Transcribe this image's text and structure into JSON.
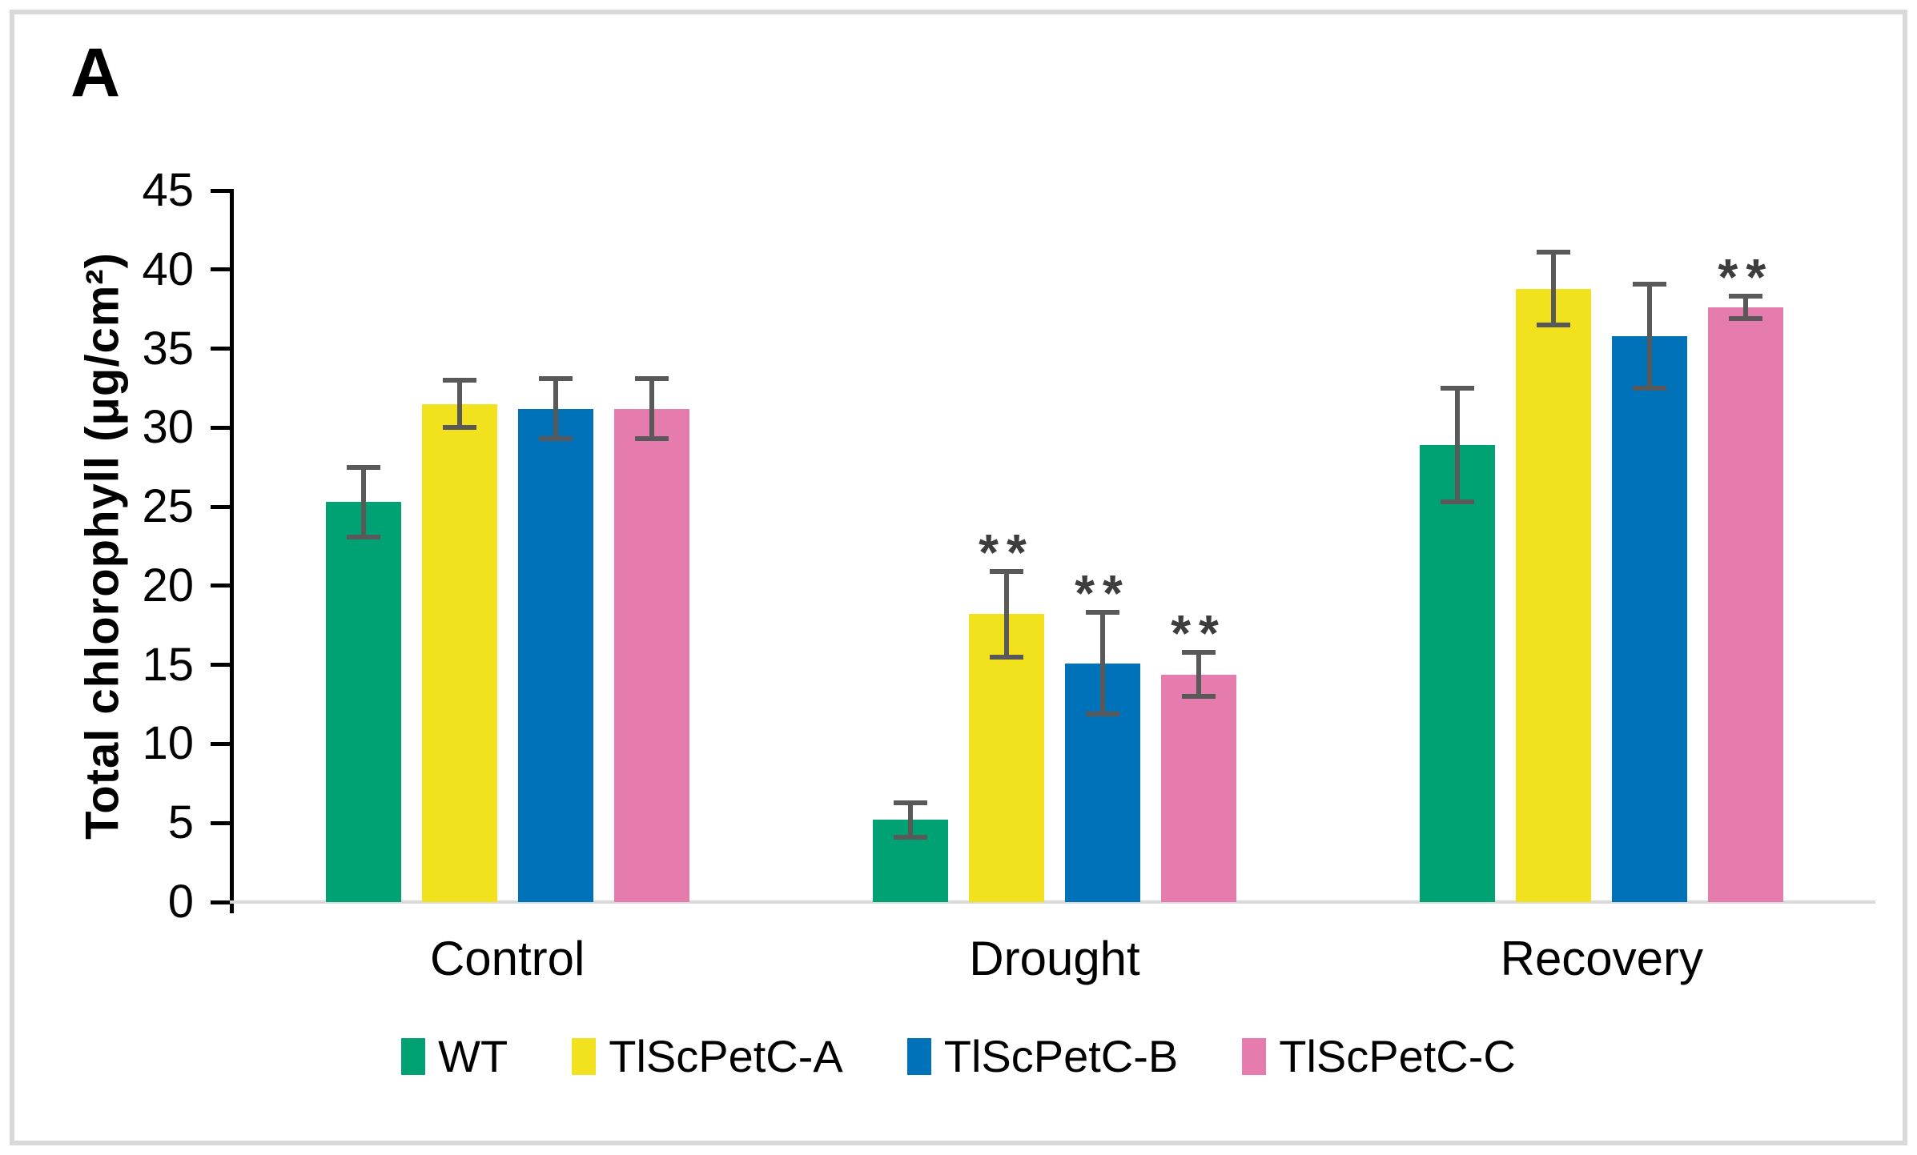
{
  "panel_label": "A",
  "colors": {
    "wt_green": "#00A273",
    "lineA_yellow": "#F2E21E",
    "lineB_blue": "#0072B9",
    "lineC_pink": "#E67CAD",
    "error_bar": "#595959",
    "asterisk": "#3d3d3d",
    "axis_line": "#000000",
    "baseline_gray": "#d9d9d9",
    "frame_gray": "#d9d9d9"
  },
  "chart_data": {
    "type": "bar",
    "title": "",
    "xlabel": "",
    "ylabel": "Total chlorophyll (μg/cm²)",
    "ylim": [
      0,
      45
    ],
    "y_ticks": [
      0,
      5,
      10,
      15,
      20,
      25,
      30,
      35,
      40,
      45
    ],
    "grid": false,
    "legend_position": "bottom",
    "categories": [
      "Control",
      "Drought",
      "Recovery"
    ],
    "series": [
      {
        "name": "WT",
        "color": "#00A273",
        "values": [
          25.3,
          5.2,
          28.9
        ],
        "errors": [
          2.2,
          1.1,
          3.6
        ],
        "significance": [
          "",
          "",
          ""
        ]
      },
      {
        "name": "TlScPetC-A",
        "color": "#F2E21E",
        "values": [
          31.5,
          18.2,
          38.8
        ],
        "errors": [
          1.5,
          2.7,
          2.3
        ],
        "significance": [
          "",
          "**",
          ""
        ]
      },
      {
        "name": "TlScPetC-B",
        "color": "#0072B9",
        "values": [
          31.2,
          15.1,
          35.8
        ],
        "errors": [
          1.9,
          3.2,
          3.3
        ],
        "significance": [
          "",
          "**",
          ""
        ]
      },
      {
        "name": "TlScPetC-C",
        "color": "#E67CAD",
        "values": [
          31.2,
          14.4,
          37.6
        ],
        "errors": [
          1.9,
          1.4,
          0.7
        ],
        "significance": [
          "",
          "**",
          "**"
        ]
      }
    ]
  }
}
